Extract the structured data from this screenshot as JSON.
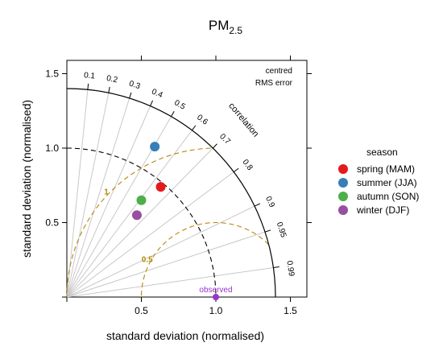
{
  "chart_data": {
    "type": "scatter",
    "subtype": "taylor-diagram",
    "title_main": "PM",
    "title_sub": "2.5",
    "xlabel": "standard deviation (normalised)",
    "ylabel": "standard deviation (normalised)",
    "xlim": [
      0,
      1.6
    ],
    "ylim": [
      0,
      1.6
    ],
    "xticks": [
      0.5,
      1.0,
      1.5
    ],
    "yticks": [
      0.5,
      1.0,
      1.5
    ],
    "xtick_labels": [
      "0.5",
      "1.0",
      "1.5"
    ],
    "ytick_labels": [
      "0.5",
      "1.0",
      "1.5"
    ],
    "sd_max": 1.4,
    "correlation_ticks": [
      0.1,
      0.2,
      0.3,
      0.4,
      0.5,
      0.6,
      0.7,
      0.8,
      0.9,
      0.95,
      0.99
    ],
    "correlation_tick_labels": [
      "0.1",
      "0.2",
      "0.3",
      "0.4",
      "0.5",
      "0.6",
      "0.7",
      "0.8",
      "0.9",
      "0.95",
      "0.99"
    ],
    "correlation_axis_label": "correlation",
    "rms_contours": [
      0.5,
      1
    ],
    "rms_contour_labels": [
      "0.5",
      "1"
    ],
    "rms_label_line1": "centred",
    "rms_label_line2": "RMS error",
    "observed_sd": 1.0,
    "observed_label": "observed",
    "legend_title": "season",
    "legend_position": "right",
    "series": [
      {
        "name": "spring (MAM)",
        "x": 0.63,
        "y": 0.74,
        "color": "#e41a1c"
      },
      {
        "name": "summer (JJA)",
        "x": 0.59,
        "y": 1.01,
        "color": "#377eb8"
      },
      {
        "name": "autumn (SON)",
        "x": 0.5,
        "y": 0.65,
        "color": "#4daf4a"
      },
      {
        "name": "winter (DJF)",
        "x": 0.47,
        "y": 0.55,
        "color": "#984ea3"
      }
    ],
    "colors": {
      "rms": "#b8860b",
      "observed": "#9933cc",
      "grid": "#c8c8c8"
    }
  }
}
